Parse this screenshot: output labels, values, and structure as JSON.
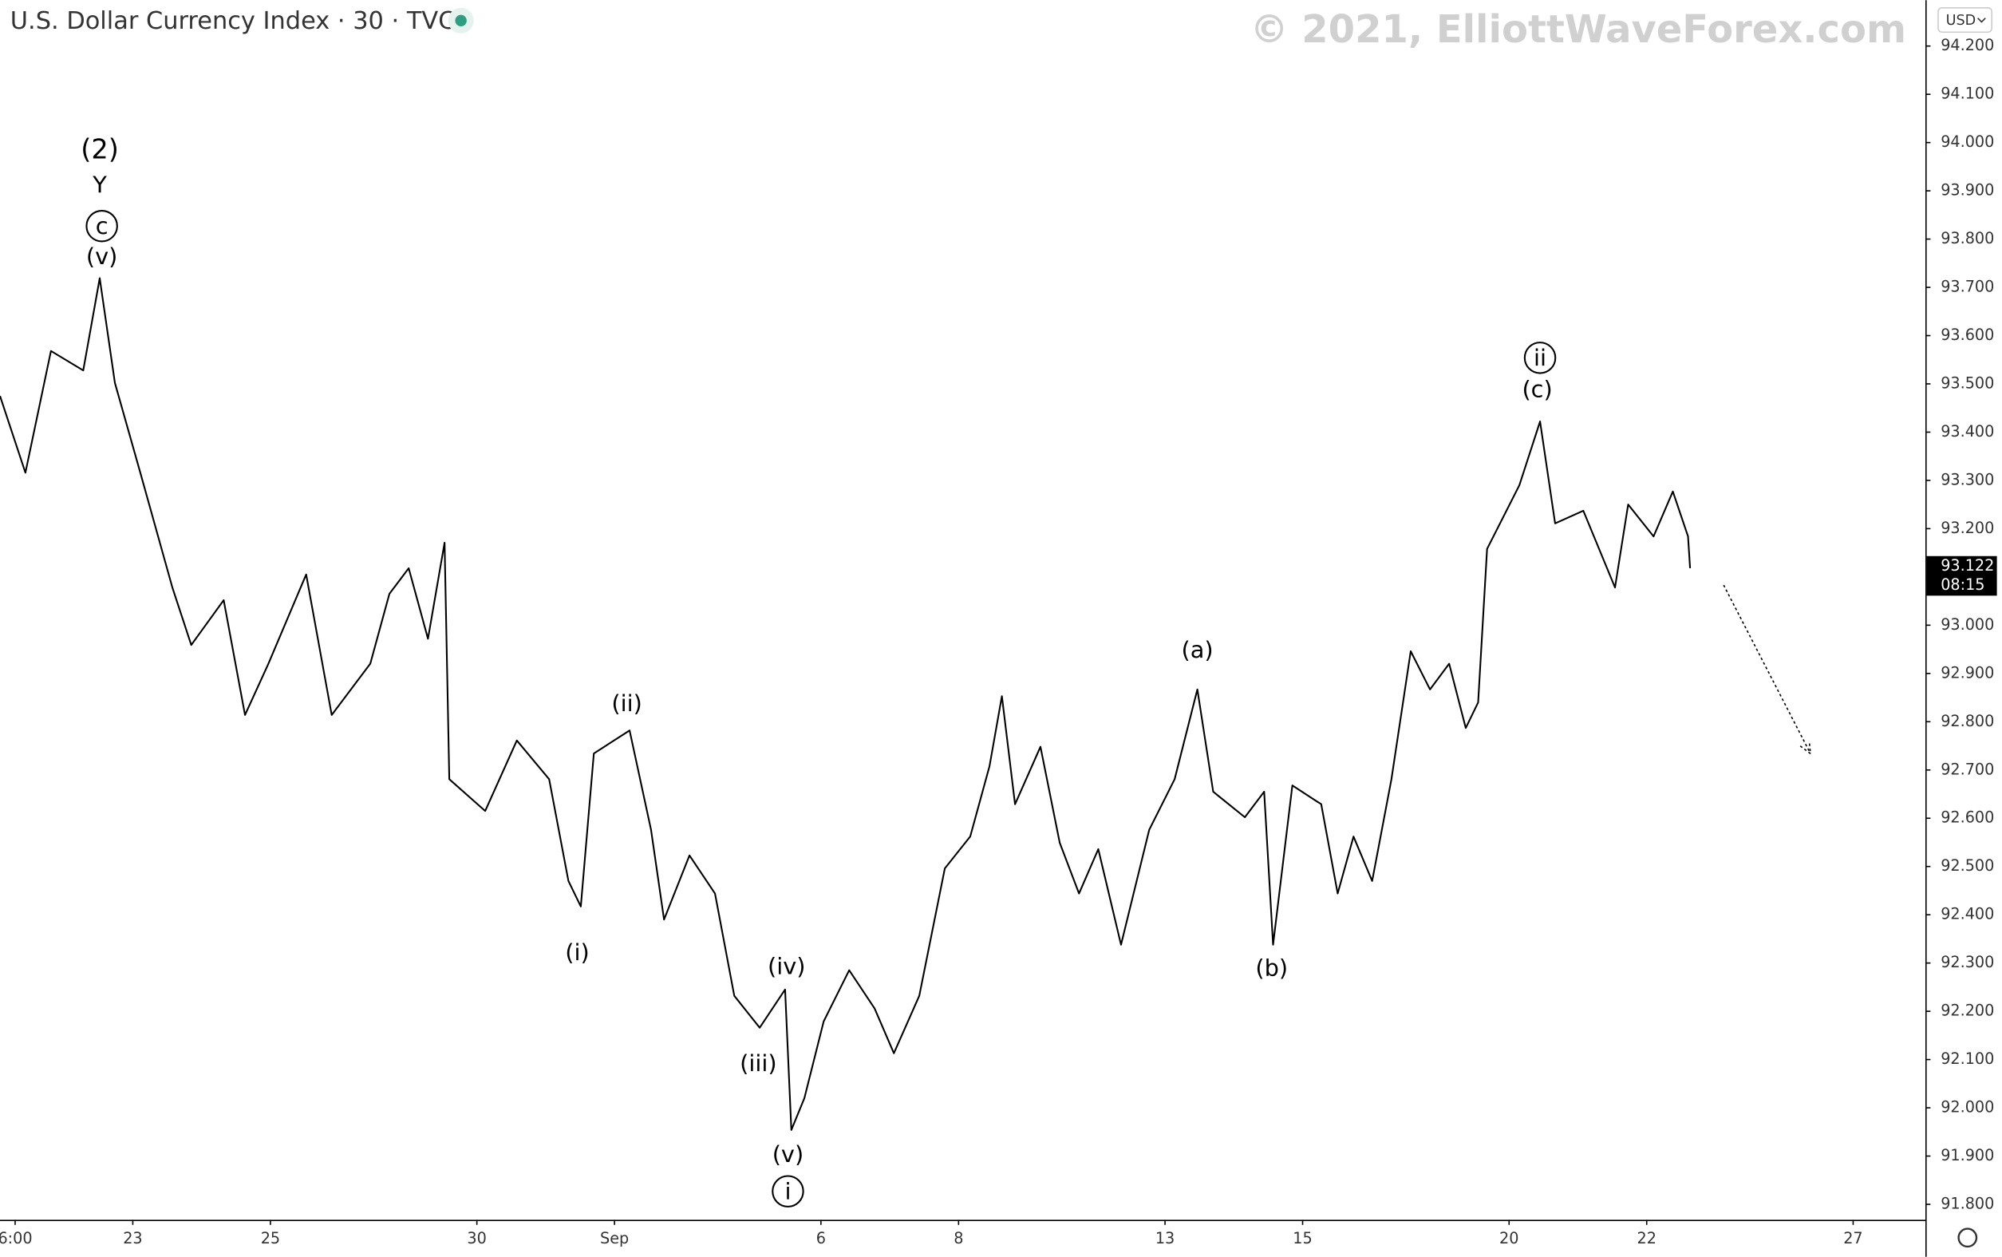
{
  "chart_data": {
    "type": "line",
    "title": "U.S. Dollar Currency Index · 30 · TVC",
    "watermark": "© 2021, ElliottWaveForex.com",
    "currency": "USD",
    "last_price": 93.122,
    "countdown": "08:15",
    "xlim": [
      -1.93,
      26.05
    ],
    "ylim": [
      91.768,
      94.295
    ],
    "xticks": [
      {
        "value": -1.71,
        "label": "6:00"
      },
      {
        "value": 0,
        "label": "23"
      },
      {
        "value": 2,
        "label": "25"
      },
      {
        "value": 5,
        "label": "30"
      },
      {
        "value": 7,
        "label": "Sep"
      },
      {
        "value": 10,
        "label": "6"
      },
      {
        "value": 12,
        "label": "8"
      },
      {
        "value": 15,
        "label": "13"
      },
      {
        "value": 17,
        "label": "15"
      },
      {
        "value": 20,
        "label": "20"
      },
      {
        "value": 22,
        "label": "22"
      },
      {
        "value": 25,
        "label": "27"
      }
    ],
    "yticks": [
      {
        "value": 91.8,
        "label": "91.800"
      },
      {
        "value": 91.9,
        "label": "91.900"
      },
      {
        "value": 92.0,
        "label": "92.000"
      },
      {
        "value": 92.1,
        "label": "92.100"
      },
      {
        "value": 92.2,
        "label": "92.200"
      },
      {
        "value": 92.3,
        "label": "92.300"
      },
      {
        "value": 92.4,
        "label": "92.400"
      },
      {
        "value": 92.5,
        "label": "92.500"
      },
      {
        "value": 92.6,
        "label": "92.600"
      },
      {
        "value": 92.7,
        "label": "92.700"
      },
      {
        "value": 92.8,
        "label": "92.800"
      },
      {
        "value": 92.9,
        "label": "92.900"
      },
      {
        "value": 93.0,
        "label": "93.000"
      },
      {
        "value": 93.1,
        "label": "93.100"
      },
      {
        "value": 93.2,
        "label": "93.200"
      },
      {
        "value": 93.3,
        "label": "93.300"
      },
      {
        "value": 93.4,
        "label": "93.400"
      },
      {
        "value": 93.5,
        "label": "93.500"
      },
      {
        "value": 93.6,
        "label": "93.600"
      },
      {
        "value": 93.7,
        "label": "93.700"
      },
      {
        "value": 93.8,
        "label": "93.800"
      },
      {
        "value": 93.9,
        "label": "93.900"
      },
      {
        "value": 94.0,
        "label": "94.000"
      },
      {
        "value": 94.1,
        "label": "94.100"
      },
      {
        "value": 94.2,
        "label": "94.200"
      }
    ],
    "series": [
      {
        "color": "#000000",
        "x": [
          -1.93,
          -1.56,
          -1.19,
          -0.72,
          -0.48,
          -0.26,
          0.11,
          0.575,
          0.85,
          1.32,
          1.63,
          1.97,
          2.52,
          2.89,
          3.45,
          3.73,
          4.01,
          4.29,
          4.53,
          4.6,
          5.12,
          5.58,
          6.05,
          6.33,
          6.51,
          6.7,
          7.22,
          7.53,
          7.72,
          8.09,
          8.46,
          8.74,
          9.11,
          9.48,
          9.57,
          9.76,
          10.04,
          10.41,
          10.78,
          11.06,
          11.43,
          11.8,
          12.17,
          12.45,
          12.63,
          12.82,
          13.19,
          13.47,
          13.75,
          14.03,
          14.36,
          14.77,
          15.14,
          15.47,
          15.7,
          16.16,
          16.44,
          16.57,
          16.85,
          17.27,
          17.51,
          17.74,
          18.01,
          18.29,
          18.57,
          18.85,
          19.13,
          19.37,
          19.55,
          19.68,
          20.15,
          20.45,
          20.67,
          21.08,
          21.54,
          21.73,
          22.1,
          22.38,
          22.6,
          22.63
        ],
        "values": [
          93.475,
          93.316,
          93.568,
          93.528,
          93.719,
          93.502,
          93.316,
          93.078,
          92.959,
          93.052,
          92.814,
          92.92,
          93.105,
          92.814,
          92.92,
          93.065,
          93.118,
          92.972,
          93.171,
          92.681,
          92.615,
          92.761,
          92.681,
          92.47,
          92.417,
          92.734,
          92.782,
          92.576,
          92.39,
          92.523,
          92.444,
          92.232,
          92.166,
          92.245,
          91.954,
          92.02,
          92.179,
          92.285,
          92.206,
          92.113,
          92.232,
          92.496,
          92.562,
          92.708,
          92.853,
          92.629,
          92.748,
          92.549,
          92.444,
          92.536,
          92.338,
          92.576,
          92.681,
          92.867,
          92.655,
          92.602,
          92.655,
          92.338,
          92.668,
          92.629,
          92.444,
          92.562,
          92.47,
          92.681,
          92.946,
          92.867,
          92.92,
          92.787,
          92.84,
          93.158,
          93.29,
          93.422,
          93.211,
          93.237,
          93.078,
          93.25,
          93.184,
          93.277,
          93.184,
          93.118
        ]
      }
    ],
    "annotations": [
      {
        "text": "(2)",
        "x": -0.48,
        "y": 93.983
      },
      {
        "text": "Y",
        "x": -0.48,
        "y": 93.909
      },
      {
        "text": "c",
        "x": -0.45,
        "y": 93.827,
        "circled": true
      },
      {
        "text": "(v)",
        "x": -0.45,
        "y": 93.761
      },
      {
        "text": "(i)",
        "x": 6.46,
        "y": 92.319
      },
      {
        "text": "(ii)",
        "x": 7.18,
        "y": 92.835
      },
      {
        "text": "(iii)",
        "x": 9.09,
        "y": 92.089
      },
      {
        "text": "(iv)",
        "x": 9.5,
        "y": 92.29
      },
      {
        "text": "(v)",
        "x": 9.52,
        "y": 91.901
      },
      {
        "text": "i",
        "x": 9.52,
        "y": 91.827,
        "circled": true
      },
      {
        "text": "(a)",
        "x": 15.47,
        "y": 92.946
      },
      {
        "text": "(b)",
        "x": 16.55,
        "y": 92.287
      },
      {
        "text": "ii",
        "x": 20.45,
        "y": 93.554,
        "circled": true
      },
      {
        "text": "(c)",
        "x": 20.41,
        "y": 93.486
      }
    ]
  }
}
